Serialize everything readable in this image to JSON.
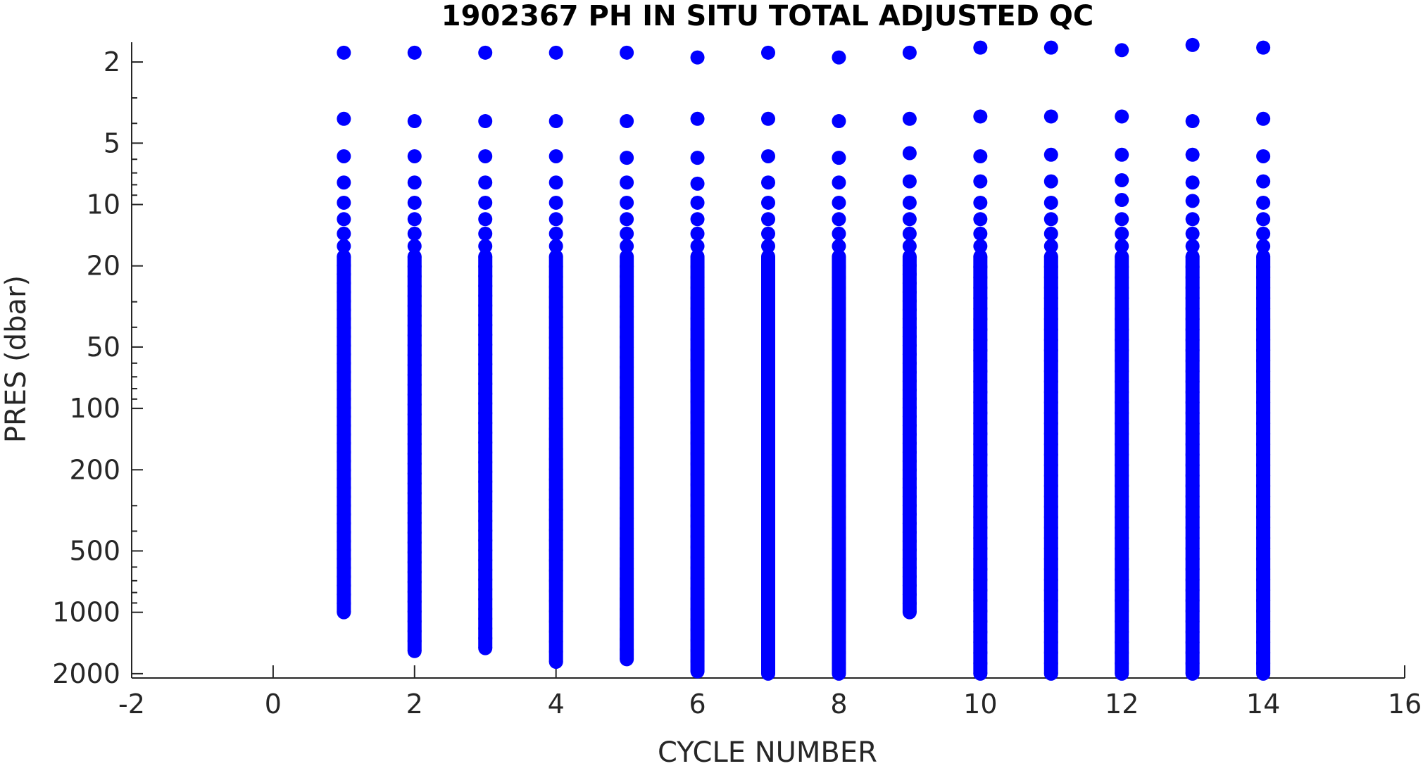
{
  "chart_data": {
    "type": "scatter",
    "title": "1902367  PH IN SITU TOTAL ADJUSTED QC",
    "xlabel": "CYCLE NUMBER",
    "ylabel": "PRES (dbar)",
    "xlim": [
      -2,
      16
    ],
    "xticks": [
      -2,
      0,
      2,
      4,
      6,
      8,
      10,
      12,
      14,
      16
    ],
    "ylim": [
      1.6,
      2100
    ],
    "yscale": "log",
    "yreversed": true,
    "yticks": [
      2,
      5,
      10,
      20,
      50,
      100,
      200,
      500,
      1000,
      2000
    ],
    "grid": false,
    "marker_color": "#0000ff",
    "series": [
      {
        "values": [
          {
            "x": 1,
            "top": [
              1.8,
              3.8,
              5.8,
              7.8,
              9.8,
              11.8,
              13.9,
              16
            ],
            "min": 18,
            "max": 1000
          },
          {
            "x": 2,
            "top": [
              1.8,
              3.9,
              5.8,
              7.8,
              9.8,
              11.8,
              13.9,
              16
            ],
            "min": 18,
            "max": 1550
          },
          {
            "x": 3,
            "top": [
              1.8,
              3.9,
              5.8,
              7.8,
              9.8,
              11.8,
              13.9,
              16
            ],
            "min": 18,
            "max": 1500
          },
          {
            "x": 4,
            "top": [
              1.8,
              3.9,
              5.8,
              7.8,
              9.8,
              11.8,
              13.9,
              16
            ],
            "min": 18,
            "max": 1750
          },
          {
            "x": 5,
            "top": [
              1.8,
              3.9,
              5.9,
              7.8,
              9.8,
              11.8,
              13.9,
              16
            ],
            "min": 18,
            "max": 1700
          },
          {
            "x": 6,
            "top": [
              1.9,
              3.8,
              5.9,
              7.9,
              9.8,
              11.8,
              13.9,
              16
            ],
            "min": 18,
            "max": 1950
          },
          {
            "x": 7,
            "top": [
              1.8,
              3.8,
              5.8,
              7.8,
              9.8,
              11.8,
              13.9,
              16
            ],
            "min": 18,
            "max": 2000
          },
          {
            "x": 8,
            "top": [
              1.9,
              3.9,
              5.9,
              7.8,
              9.8,
              11.8,
              13.9,
              16
            ],
            "min": 18,
            "max": 2000
          },
          {
            "x": 9,
            "top": [
              1.8,
              3.8,
              5.6,
              7.7,
              9.8,
              11.8,
              13.9,
              16
            ],
            "min": 18,
            "max": 1000
          },
          {
            "x": 10,
            "top": [
              1.7,
              3.7,
              5.8,
              7.7,
              9.8,
              11.8,
              13.9,
              16
            ],
            "min": 18,
            "max": 2000
          },
          {
            "x": 11,
            "top": [
              1.7,
              3.7,
              5.7,
              7.7,
              9.8,
              11.8,
              13.9,
              16
            ],
            "min": 18,
            "max": 2000
          },
          {
            "x": 12,
            "top": [
              1.75,
              3.7,
              5.7,
              7.6,
              9.5,
              11.8,
              13.9,
              16
            ],
            "min": 18,
            "max": 2000
          },
          {
            "x": 13,
            "top": [
              1.65,
              3.9,
              5.7,
              7.8,
              9.6,
              11.8,
              13.9,
              16
            ],
            "min": 18,
            "max": 2000
          },
          {
            "x": 14,
            "top": [
              1.7,
              3.8,
              5.8,
              7.7,
              9.8,
              11.8,
              13.9,
              16
            ],
            "min": 18,
            "max": 2000
          }
        ]
      }
    ]
  }
}
